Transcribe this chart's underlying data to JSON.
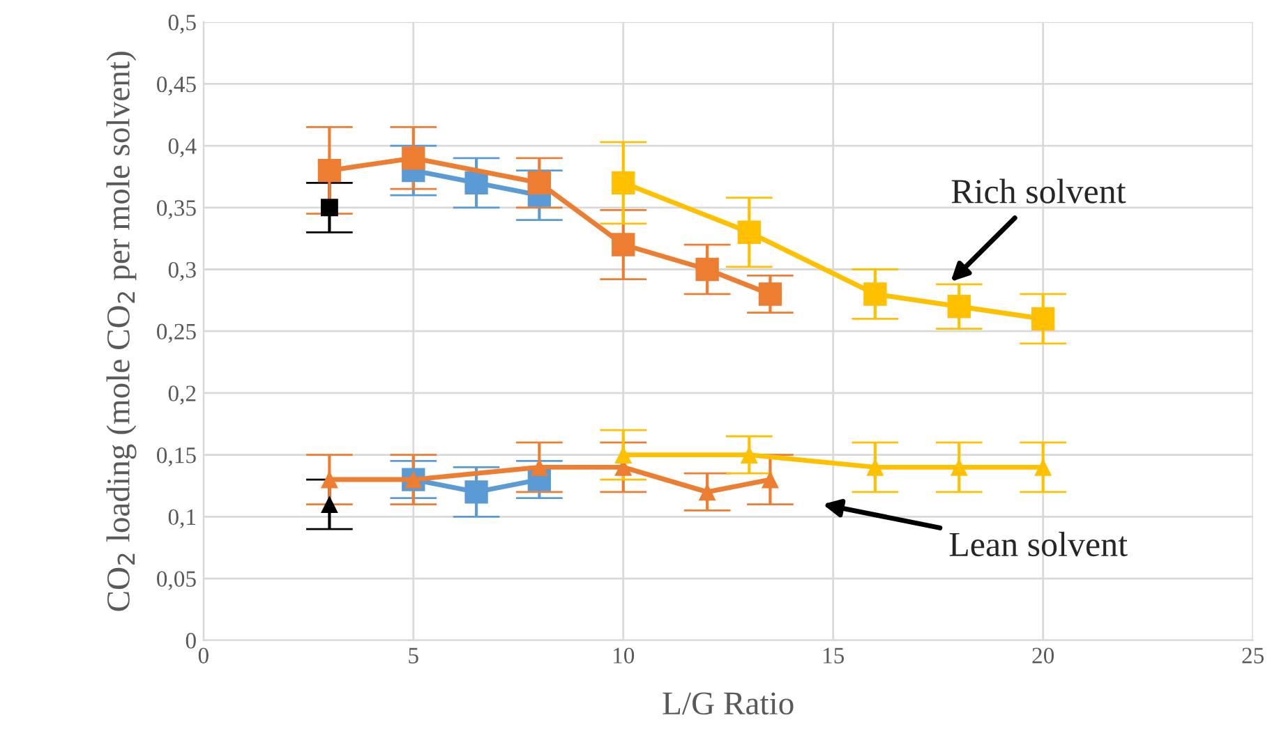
{
  "chart_data": {
    "type": "line",
    "xlabel": "L/G Ratio",
    "ylabel": "CO$_{2}$ loading (mole CO$_{2}$ per mole solvent)",
    "xlim": [
      0,
      25
    ],
    "xticks": [
      0,
      5,
      10,
      15,
      20,
      25
    ],
    "ylim": [
      0,
      0.5
    ],
    "yticks": [
      {
        "value": 0,
        "label": "0"
      },
      {
        "value": 0.05,
        "label": "0,05"
      },
      {
        "value": 0.1,
        "label": "0,1"
      },
      {
        "value": 0.15,
        "label": "0,15"
      },
      {
        "value": 0.2,
        "label": "0,2"
      },
      {
        "value": 0.25,
        "label": "0,25"
      },
      {
        "value": 0.3,
        "label": "0,3"
      },
      {
        "value": 0.35,
        "label": "0,35"
      },
      {
        "value": 0.4,
        "label": "0,4"
      },
      {
        "value": 0.45,
        "label": "0,45"
      },
      {
        "value": 0.5,
        "label": "0,5"
      }
    ],
    "grid": true,
    "series": [
      {
        "type": "scatter",
        "color": "#000000",
        "marker": "square",
        "x": [
          3
        ],
        "values": [
          0.35
        ],
        "errors": [
          0.02
        ]
      },
      {
        "color": "#5b9bd5",
        "marker": "square",
        "x": [
          5,
          6.5,
          8
        ],
        "values": [
          0.38,
          0.37,
          0.36
        ],
        "errors": [
          0.02,
          0.02,
          0.02
        ]
      },
      {
        "color": "#ed7d31",
        "marker": "square",
        "x": [
          3,
          5,
          8,
          10,
          12,
          13.5
        ],
        "values": [
          0.38,
          0.39,
          0.37,
          0.32,
          0.3,
          0.28
        ],
        "errors": [
          0.035,
          0.025,
          0.02,
          0.028,
          0.02,
          0.015
        ]
      },
      {
        "color": "#ffc000",
        "marker": "square",
        "x": [
          10,
          13,
          16,
          18,
          20
        ],
        "values": [
          0.37,
          0.33,
          0.28,
          0.27,
          0.26
        ],
        "errors": [
          0.033,
          0.028,
          0.02,
          0.018,
          0.02
        ]
      },
      {
        "type": "scatter",
        "color": "#000000",
        "marker": "triangle",
        "x": [
          3
        ],
        "values": [
          0.11
        ],
        "errors": [
          0.02
        ]
      },
      {
        "color": "#5b9bd5",
        "marker": "square",
        "x": [
          5,
          6.5,
          8
        ],
        "values": [
          0.13,
          0.12,
          0.13
        ],
        "errors": [
          0.015,
          0.02,
          0.015
        ]
      },
      {
        "color": "#ed7d31",
        "marker": "triangle",
        "x": [
          3,
          5,
          8,
          10,
          12,
          13.5
        ],
        "values": [
          0.13,
          0.13,
          0.14,
          0.14,
          0.12,
          0.13
        ],
        "errors": [
          0.02,
          0.02,
          0.02,
          0.02,
          0.015,
          0.02
        ]
      },
      {
        "color": "#ffc000",
        "marker": "triangle",
        "x": [
          10,
          13,
          16,
          18,
          20
        ],
        "values": [
          0.15,
          0.15,
          0.14,
          0.14,
          0.14
        ],
        "errors": [
          0.02,
          0.015,
          0.02,
          0.02,
          0.02
        ]
      }
    ],
    "annotations": [
      {
        "text": "Rich solvent",
        "x": 17.8,
        "y": 0.29
      },
      "Lean solvent"
    ]
  }
}
